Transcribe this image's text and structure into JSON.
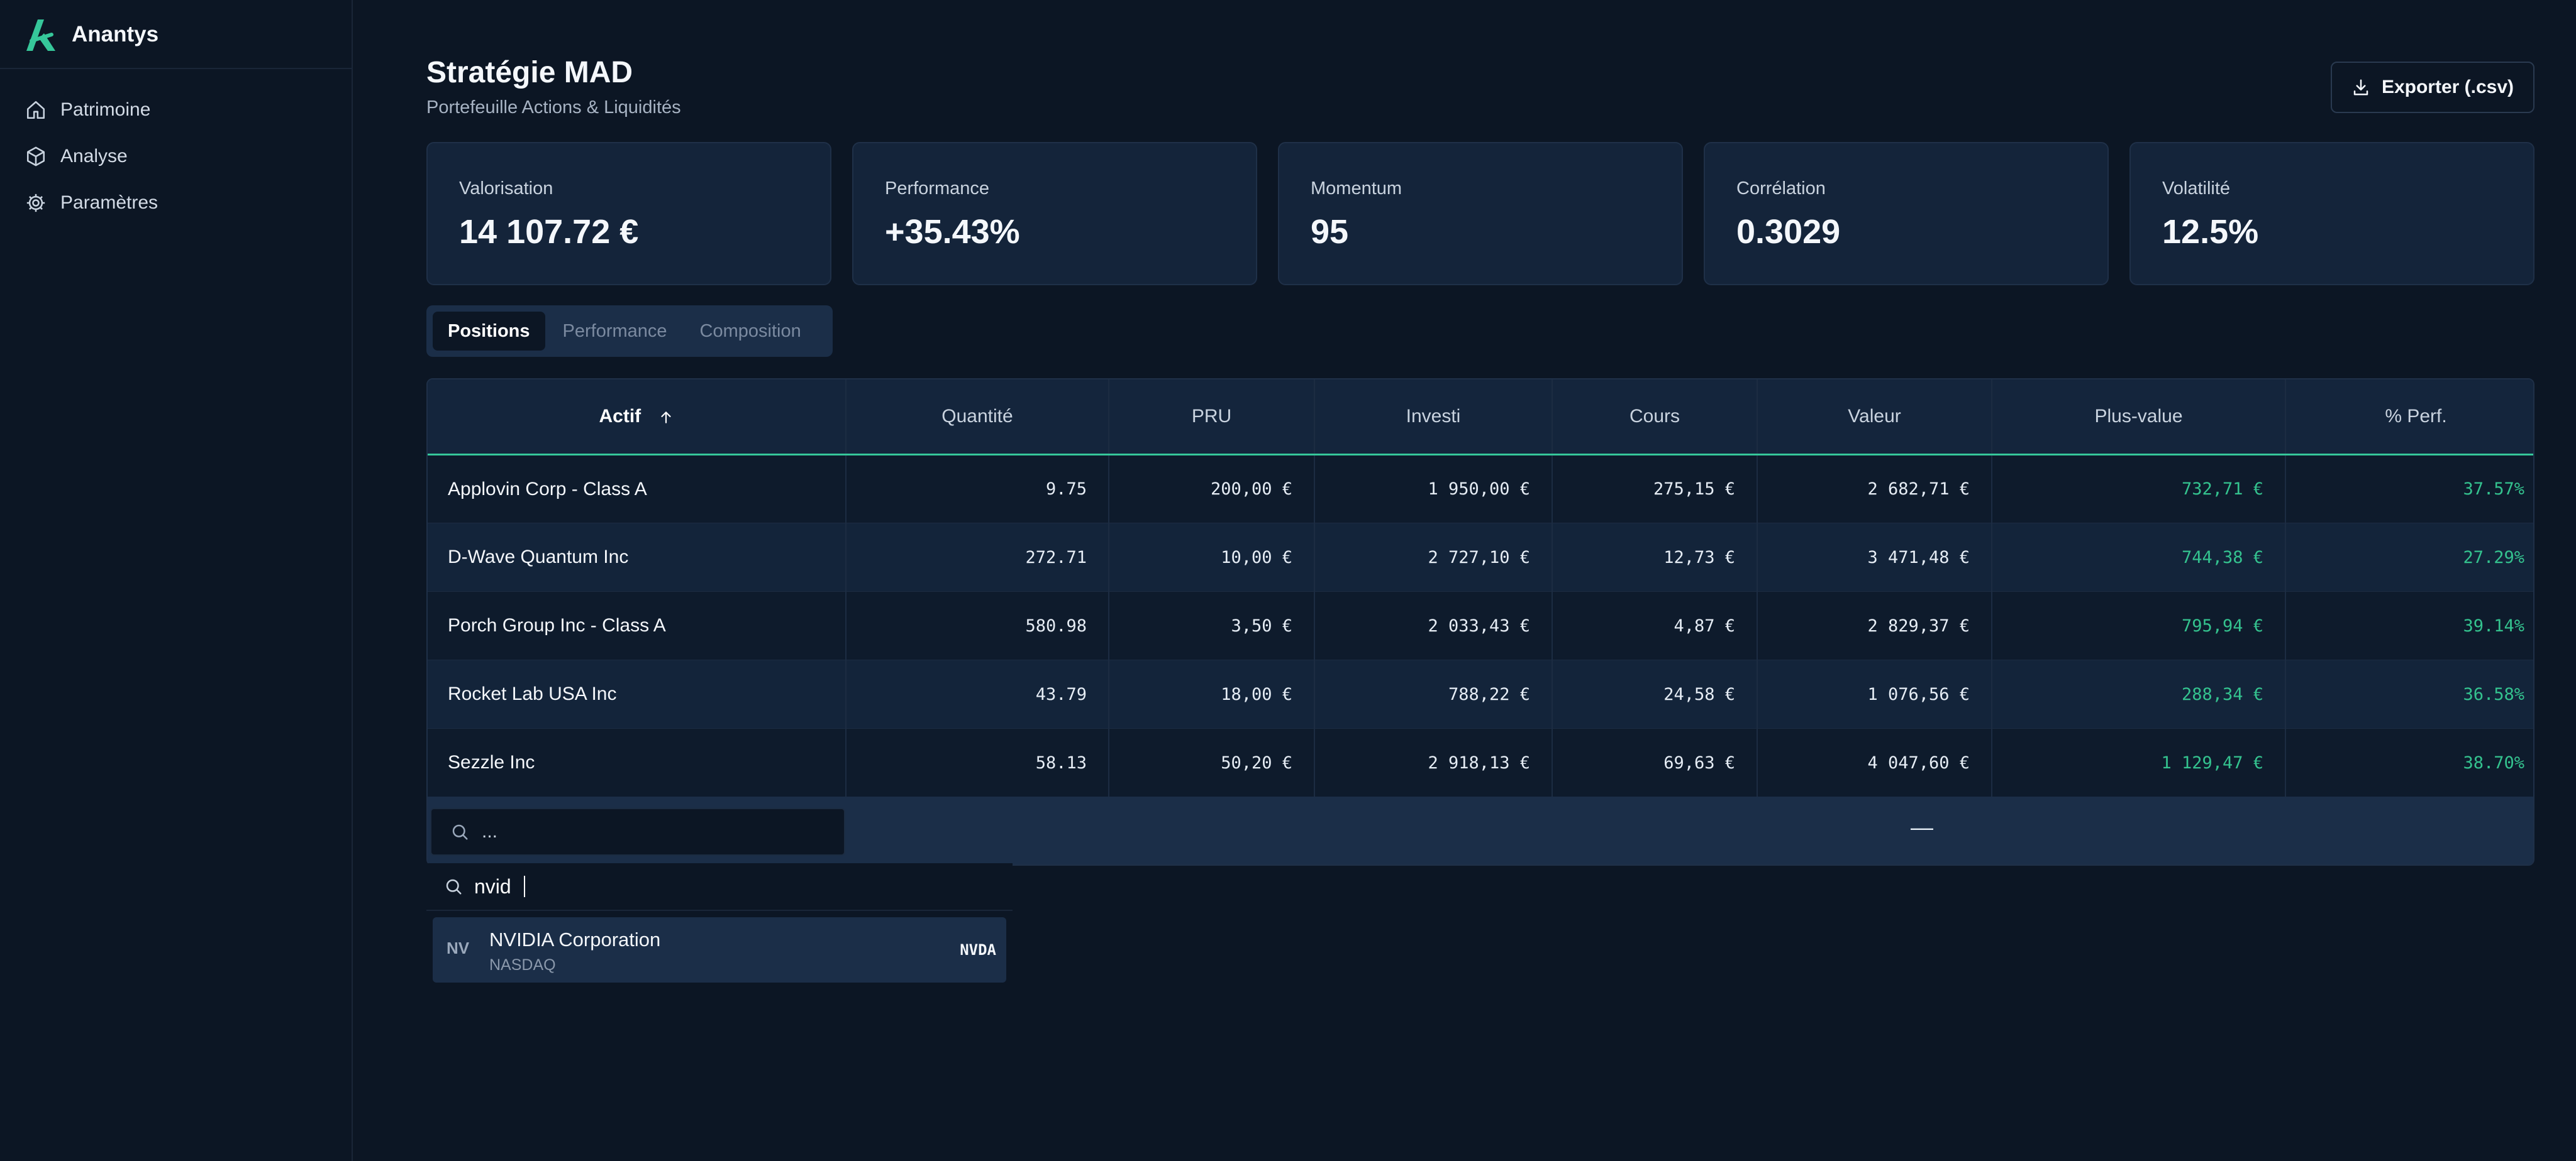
{
  "app": {
    "name": "Anantys"
  },
  "sidebar": {
    "items": [
      {
        "label": "Patrimoine",
        "icon": "home-icon"
      },
      {
        "label": "Analyse",
        "icon": "cube-icon"
      },
      {
        "label": "Paramètres",
        "icon": "gear-icon"
      }
    ]
  },
  "header": {
    "title": "Stratégie MAD",
    "subtitle": "Portefeuille Actions & Liquidités",
    "export_label": "Exporter (.csv)"
  },
  "kpis": [
    {
      "label": "Valorisation",
      "value": "14 107.72 €"
    },
    {
      "label": "Performance",
      "value": "+35.43%"
    },
    {
      "label": "Momentum",
      "value": "95"
    },
    {
      "label": "Corrélation",
      "value": "0.3029"
    },
    {
      "label": "Volatilité",
      "value": "12.5%"
    }
  ],
  "tabs": [
    {
      "label": "Positions",
      "active": true
    },
    {
      "label": "Performance",
      "active": false
    },
    {
      "label": "Composition",
      "active": false
    }
  ],
  "table": {
    "columns": [
      "Actif",
      "Quantité",
      "PRU",
      "Investi",
      "Cours",
      "Valeur",
      "Plus-value",
      "% Perf."
    ],
    "sorted_column": "Actif",
    "rows": [
      [
        "Applovin Corp - Class A",
        "9.75",
        "200,00 €",
        "1 950,00 €",
        "275,15 €",
        "2 682,71 €",
        "732,71 €",
        "37.57%"
      ],
      [
        "D-Wave Quantum Inc",
        "272.71",
        "10,00 €",
        "2 727,10 €",
        "12,73 €",
        "3 471,48 €",
        "744,38 €",
        "27.29%"
      ],
      [
        "Porch Group Inc - Class A",
        "580.98",
        "3,50 €",
        "2 033,43 €",
        "4,87 €",
        "2 829,37 €",
        "795,94 €",
        "39.14%"
      ],
      [
        "Rocket Lab USA Inc",
        "43.79",
        "18,00 €",
        "788,22 €",
        "24,58 €",
        "1 076,56 €",
        "288,34 €",
        "36.58%"
      ],
      [
        "Sezzle Inc",
        "58.13",
        "50,20 €",
        "2 918,13 €",
        "69,63 €",
        "4 047,60 €",
        "1 129,47 €",
        "38.70%"
      ]
    ],
    "add_row": {
      "search_placeholder": "...",
      "dash": "—"
    }
  },
  "dropdown": {
    "query": "nvid",
    "results": [
      {
        "abbr": "NV",
        "name": "NVIDIA Corporation",
        "exchange": "NASDAQ",
        "ticker": "NVDA"
      }
    ]
  },
  "colors": {
    "background": "#0c1624",
    "card": "#14243a",
    "accent": "#36c79a",
    "positive": "#34c38f"
  }
}
